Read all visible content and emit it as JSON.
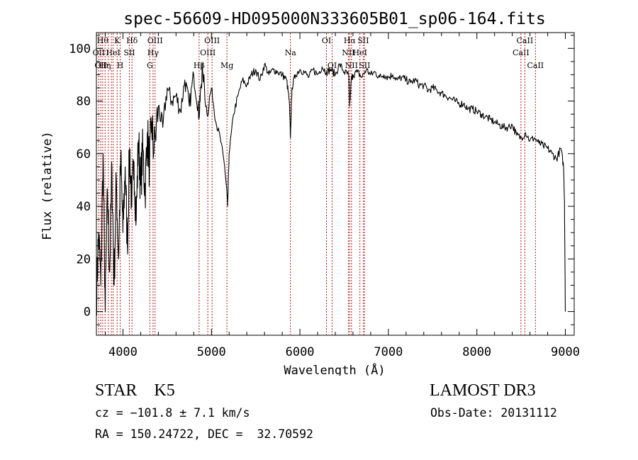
{
  "chart_data": {
    "type": "line",
    "title": "spec-56609-HD095000N333605B01_sp06-164.fits",
    "xlabel": "Wavelength (Å)",
    "ylabel": "Flux (relative)",
    "xlim": [
      3700,
      9100
    ],
    "ylim": [
      -9,
      106
    ],
    "xticks": [
      4000,
      5000,
      6000,
      7000,
      8000,
      9000
    ],
    "yticks": [
      0,
      20,
      40,
      60,
      80,
      100
    ],
    "grid": false,
    "series": [
      {
        "name": "spectrum",
        "x": [
          3700,
          3725,
          3750,
          3775,
          3800,
          3825,
          3850,
          3875,
          3900,
          3925,
          3950,
          3975,
          4000,
          4025,
          4050,
          4075,
          4100,
          4125,
          4150,
          4175,
          4200,
          4225,
          4250,
          4275,
          4300,
          4325,
          4350,
          4400,
          4450,
          4500,
          4550,
          4600,
          4650,
          4700,
          4750,
          4800,
          4850,
          4861,
          4880,
          4900,
          4950,
          5000,
          5050,
          5100,
          5150,
          5175,
          5183,
          5200,
          5250,
          5300,
          5350,
          5400,
          5450,
          5500,
          5550,
          5600,
          5650,
          5700,
          5750,
          5800,
          5850,
          5880,
          5893,
          5910,
          5950,
          6000,
          6050,
          6100,
          6150,
          6200,
          6250,
          6300,
          6350,
          6400,
          6450,
          6500,
          6550,
          6563,
          6580,
          6600,
          6650,
          6700,
          6750,
          6800,
          6850,
          6900,
          6950,
          7000,
          7050,
          7100,
          7150,
          7200,
          7250,
          7300,
          7350,
          7400,
          7450,
          7500,
          7550,
          7600,
          7650,
          7700,
          7750,
          7800,
          7850,
          7900,
          7950,
          8000,
          8050,
          8100,
          8150,
          8200,
          8250,
          8300,
          8350,
          8400,
          8450,
          8500,
          8550,
          8600,
          8650,
          8700,
          8750,
          8800,
          8850,
          8900,
          8950,
          8980,
          8990,
          9000
        ],
        "y": [
          5,
          30,
          10,
          60,
          0,
          45,
          15,
          55,
          10,
          50,
          20,
          58,
          30,
          55,
          25,
          62,
          40,
          57,
          35,
          65,
          48,
          62,
          45,
          68,
          55,
          72,
          60,
          78,
          70,
          85,
          80,
          82,
          76,
          88,
          78,
          90,
          78,
          74,
          85,
          92,
          75,
          85,
          72,
          66,
          55,
          45,
          40,
          60,
          75,
          82,
          88,
          86,
          90,
          92,
          88,
          94,
          90,
          92,
          91,
          90,
          88,
          80,
          66,
          85,
          90,
          92,
          91,
          89,
          92,
          90,
          93,
          91,
          92,
          90,
          94,
          91,
          90,
          78,
          88,
          90,
          91,
          89,
          92,
          90,
          91,
          89,
          90,
          89,
          90,
          88,
          89,
          88,
          87,
          88,
          86,
          86,
          84,
          85,
          84,
          83,
          82,
          81,
          80,
          79,
          79,
          77,
          77,
          76,
          75,
          74,
          73,
          72,
          71,
          70,
          70,
          71,
          67,
          66,
          68,
          65,
          66,
          64,
          63,
          62,
          60,
          58,
          62,
          55,
          42,
          0
        ]
      }
    ],
    "line_annotations": [
      {
        "wavelength": 3727,
        "label": "OII",
        "row": 2
      },
      {
        "wavelength": 3750,
        "label": "OII",
        "row": 3
      },
      {
        "wavelength": 3771,
        "label": "Hθ",
        "row": 1
      },
      {
        "wavelength": 3798,
        "label": "Hη",
        "row": 3
      },
      {
        "wavelength": 3835,
        "label": "",
        "row": 3
      },
      {
        "wavelength": 3869,
        "label": "",
        "row": 2
      },
      {
        "wavelength": 3889,
        "label": "HeI",
        "row": 2
      },
      {
        "wavelength": 3934,
        "label": "K",
        "row": 1
      },
      {
        "wavelength": 3969,
        "label": "H",
        "row": 3
      },
      {
        "wavelength": 4072,
        "label": "SII",
        "row": 2
      },
      {
        "wavelength": 4102,
        "label": "Hδ",
        "row": 1
      },
      {
        "wavelength": 4304,
        "label": "G",
        "row": 3
      },
      {
        "wavelength": 4340,
        "label": "Hγ",
        "row": 2
      },
      {
        "wavelength": 4363,
        "label": "OIII",
        "row": 1
      },
      {
        "wavelength": 4861,
        "label": "Hβ",
        "row": 3
      },
      {
        "wavelength": 4959,
        "label": "OIII",
        "row": 2
      },
      {
        "wavelength": 5007,
        "label": "OIII",
        "row": 1
      },
      {
        "wavelength": 5175,
        "label": "Mg",
        "row": 3
      },
      {
        "wavelength": 5893,
        "label": "Na",
        "row": 2
      },
      {
        "wavelength": 6300,
        "label": "OI",
        "row": 1
      },
      {
        "wavelength": 6364,
        "label": "OI",
        "row": 3
      },
      {
        "wavelength": 6548,
        "label": "NII",
        "row": 2
      },
      {
        "wavelength": 6563,
        "label": "Hα",
        "row": 1
      },
      {
        "wavelength": 6583,
        "label": "NII",
        "row": 3
      },
      {
        "wavelength": 6678,
        "label": "HeI",
        "row": 2
      },
      {
        "wavelength": 6716,
        "label": "SII",
        "row": 1
      },
      {
        "wavelength": 6731,
        "label": "SII",
        "row": 3
      },
      {
        "wavelength": 8498,
        "label": "CaII",
        "row": 2
      },
      {
        "wavelength": 8542,
        "label": "CaII",
        "row": 1
      },
      {
        "wavelength": 8662,
        "label": "CaII",
        "row": 3
      }
    ]
  },
  "info": {
    "object_class": "STAR    K5",
    "survey": "LAMOST DR3",
    "cz": "cz = −101.8 ± 7.1 km/s",
    "obs_date": "Obs-Date: 20131112",
    "ra_dec": "RA = 150.24722, DEC =  32.70592"
  }
}
